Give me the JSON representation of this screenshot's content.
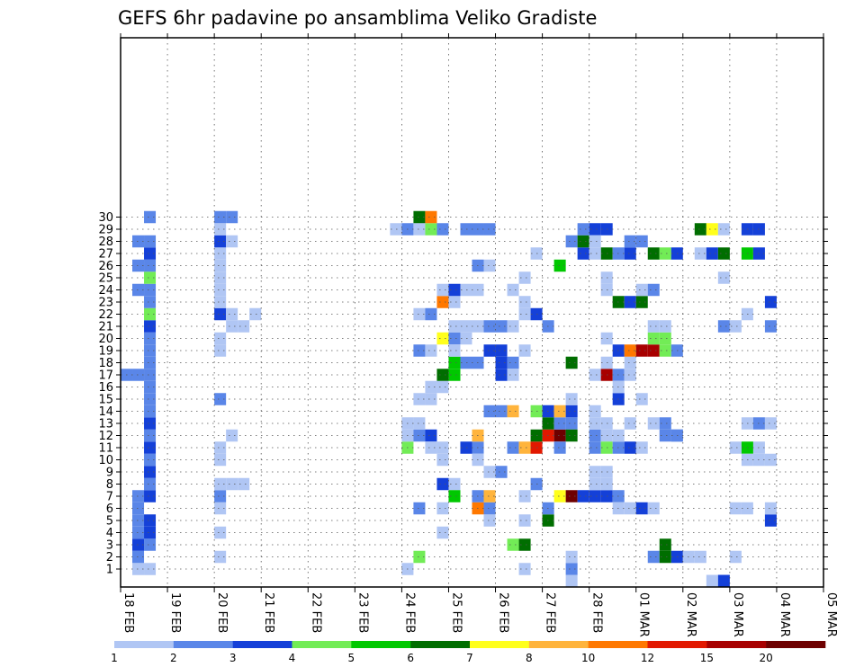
{
  "chart_data": {
    "type": "heatmap",
    "title": "GEFS 6hr padavine po ansamblima Veliko Gradiste",
    "xlabel": "",
    "ylabel": "",
    "x_tick_labels": [
      "18 FEB",
      "19 FEB",
      "20 FEB",
      "21 FEB",
      "22 FEB",
      "23 FEB",
      "24 FEB",
      "25 FEB",
      "26 FEB",
      "27 FEB",
      "28 FEB",
      "01 MAR",
      "02 MAR",
      "03 MAR",
      "04 MAR",
      "05 MAR"
    ],
    "y_tick_labels": [
      "1",
      "2",
      "3",
      "4",
      "5",
      "6",
      "7",
      "8",
      "9",
      "10",
      "11",
      "12",
      "13",
      "14",
      "15",
      "16",
      "17",
      "18",
      "19",
      "20",
      "21",
      "22",
      "23",
      "24",
      "25",
      "26",
      "27",
      "28",
      "29",
      "30"
    ],
    "grid": true,
    "x_unit": "6-hour step (0 = 18 FEB 00 UTC)",
    "colorbar": {
      "bounds": [
        "1",
        "2",
        "3",
        "4",
        "5",
        "6",
        "7",
        "8",
        "10",
        "12",
        "15",
        "20"
      ],
      "colors": [
        "#b0c6f4",
        "#5a86e8",
        "#1440d8",
        "#72ec56",
        "#00c800",
        "#006e00",
        "#ffff1c",
        "#ffb43c",
        "#ff7800",
        "#e21800",
        "#a80000",
        "#6e0000"
      ]
    },
    "cells": [
      [
        1,
        1,
        0
      ],
      [
        1,
        2,
        1
      ],
      [
        2,
        1,
        0
      ],
      [
        1,
        3,
        2
      ],
      [
        2,
        3,
        1
      ],
      [
        1,
        4,
        1
      ],
      [
        2,
        4,
        2
      ],
      [
        1,
        5,
        1
      ],
      [
        2,
        5,
        2
      ],
      [
        1,
        6,
        1
      ],
      [
        1,
        7,
        1
      ],
      [
        2,
        7,
        2
      ],
      [
        2,
        8,
        1
      ],
      [
        2,
        9,
        2
      ],
      [
        2,
        10,
        1
      ],
      [
        2,
        11,
        2
      ],
      [
        2,
        12,
        1
      ],
      [
        2,
        13,
        2
      ],
      [
        2,
        14,
        1
      ],
      [
        2,
        15,
        1
      ],
      [
        2,
        16,
        1
      ],
      [
        0,
        17,
        1
      ],
      [
        1,
        17,
        1
      ],
      [
        2,
        17,
        1
      ],
      [
        2,
        18,
        1
      ],
      [
        2,
        19,
        1
      ],
      [
        2,
        20,
        1
      ],
      [
        2,
        21,
        2
      ],
      [
        2,
        22,
        3
      ],
      [
        2,
        23,
        1
      ],
      [
        1,
        24,
        1
      ],
      [
        2,
        24,
        1
      ],
      [
        2,
        25,
        3
      ],
      [
        1,
        26,
        1
      ],
      [
        2,
        26,
        1
      ],
      [
        2,
        27,
        2
      ],
      [
        1,
        28,
        1
      ],
      [
        2,
        28,
        1
      ],
      [
        2,
        30,
        1
      ],
      [
        8,
        2,
        0
      ],
      [
        8,
        4,
        0
      ],
      [
        8,
        6,
        0
      ],
      [
        8,
        7,
        1
      ],
      [
        9,
        8,
        0
      ],
      [
        10,
        8,
        0
      ],
      [
        8,
        8,
        0
      ],
      [
        8,
        10,
        0
      ],
      [
        8,
        11,
        0
      ],
      [
        9,
        12,
        0
      ],
      [
        8,
        15,
        1
      ],
      [
        8,
        19,
        0
      ],
      [
        8,
        20,
        0
      ],
      [
        9,
        21,
        0
      ],
      [
        10,
        21,
        0
      ],
      [
        8,
        22,
        2
      ],
      [
        9,
        22,
        0
      ],
      [
        11,
        22,
        0
      ],
      [
        8,
        23,
        0
      ],
      [
        8,
        24,
        0
      ],
      [
        8,
        25,
        0
      ],
      [
        8,
        26,
        0
      ],
      [
        8,
        27,
        0
      ],
      [
        8,
        28,
        2
      ],
      [
        9,
        28,
        0
      ],
      [
        8,
        29,
        0
      ],
      [
        8,
        30,
        1
      ],
      [
        9,
        30,
        1
      ],
      [
        24,
        1,
        0
      ],
      [
        25,
        2,
        3
      ],
      [
        24,
        11,
        3
      ],
      [
        25,
        6,
        1
      ],
      [
        24,
        12,
        0
      ],
      [
        25,
        12,
        1
      ],
      [
        26,
        12,
        2
      ],
      [
        24,
        13,
        0
      ],
      [
        25,
        13,
        0
      ],
      [
        25,
        15,
        0
      ],
      [
        26,
        15,
        0
      ],
      [
        25,
        19,
        1
      ],
      [
        26,
        19,
        0
      ],
      [
        25,
        22,
        0
      ],
      [
        26,
        22,
        1
      ],
      [
        23,
        29,
        0
      ],
      [
        24,
        29,
        1
      ],
      [
        25,
        29,
        0
      ],
      [
        26,
        29,
        3
      ],
      [
        27,
        29,
        1
      ],
      [
        25,
        30,
        5
      ],
      [
        26,
        30,
        8
      ],
      [
        27,
        4,
        0
      ],
      [
        27,
        6,
        0
      ],
      [
        27,
        8,
        2
      ],
      [
        28,
        8,
        0
      ],
      [
        27,
        10,
        0
      ],
      [
        26,
        11,
        0
      ],
      [
        27,
        11,
        0
      ],
      [
        28,
        7,
        4
      ],
      [
        26,
        16,
        0
      ],
      [
        27,
        16,
        0
      ],
      [
        27,
        17,
        5
      ],
      [
        28,
        17,
        4
      ],
      [
        28,
        18,
        4
      ],
      [
        29,
        18,
        1
      ],
      [
        30,
        18,
        1
      ],
      [
        27,
        20,
        6
      ],
      [
        28,
        20,
        1
      ],
      [
        29,
        20,
        0
      ],
      [
        27,
        23,
        8
      ],
      [
        28,
        23,
        0
      ],
      [
        27,
        24,
        0
      ],
      [
        28,
        24,
        2
      ],
      [
        29,
        24,
        0
      ],
      [
        30,
        24,
        0
      ],
      [
        28,
        21,
        0
      ],
      [
        29,
        21,
        0
      ],
      [
        30,
        21,
        0
      ],
      [
        31,
        21,
        1
      ],
      [
        32,
        21,
        1
      ],
      [
        28,
        19,
        0
      ],
      [
        29,
        29,
        1
      ],
      [
        30,
        29,
        1
      ],
      [
        31,
        29,
        1
      ],
      [
        29,
        11,
        2
      ],
      [
        30,
        11,
        1
      ],
      [
        30,
        12,
        7
      ],
      [
        31,
        9,
        0
      ],
      [
        31,
        5,
        0
      ],
      [
        32,
        9,
        1
      ],
      [
        32,
        14,
        1
      ],
      [
        33,
        14,
        7
      ],
      [
        31,
        14,
        1
      ],
      [
        30,
        6,
        8
      ],
      [
        31,
        6,
        1
      ],
      [
        30,
        7,
        1
      ],
      [
        31,
        7,
        7
      ],
      [
        30,
        10,
        0
      ],
      [
        32,
        18,
        2
      ],
      [
        31,
        19,
        2
      ],
      [
        32,
        19,
        2
      ],
      [
        33,
        18,
        1
      ],
      [
        32,
        17,
        2
      ],
      [
        33,
        17,
        0
      ],
      [
        30,
        26,
        1
      ],
      [
        31,
        26,
        0
      ],
      [
        33,
        3,
        3
      ],
      [
        34,
        3,
        5
      ],
      [
        34,
        1,
        0
      ],
      [
        33,
        11,
        1
      ],
      [
        34,
        11,
        7
      ],
      [
        35,
        11,
        9
      ],
      [
        35,
        12,
        5
      ],
      [
        36,
        12,
        9
      ],
      [
        37,
        12,
        11
      ],
      [
        36,
        13,
        5
      ],
      [
        37,
        13,
        1
      ],
      [
        38,
        13,
        1
      ],
      [
        35,
        14,
        3
      ],
      [
        36,
        14,
        2
      ],
      [
        37,
        14,
        7
      ],
      [
        36,
        5,
        5
      ],
      [
        36,
        6,
        1
      ],
      [
        34,
        5,
        0
      ],
      [
        34,
        7,
        0
      ],
      [
        35,
        8,
        1
      ],
      [
        34,
        19,
        0
      ],
      [
        33,
        21,
        0
      ],
      [
        34,
        23,
        0
      ],
      [
        33,
        24,
        0
      ],
      [
        34,
        25,
        0
      ],
      [
        34,
        22,
        0
      ],
      [
        35,
        22,
        2
      ],
      [
        36,
        21,
        1
      ],
      [
        35,
        27,
        0
      ],
      [
        37,
        11,
        1
      ],
      [
        37,
        7,
        6
      ],
      [
        38,
        7,
        11
      ],
      [
        38,
        12,
        5
      ],
      [
        38,
        14,
        2
      ],
      [
        38,
        15,
        0
      ],
      [
        38,
        18,
        5
      ],
      [
        37,
        26,
        4
      ],
      [
        38,
        1,
        1
      ],
      [
        38,
        2,
        0
      ],
      [
        39,
        27,
        2
      ],
      [
        38,
        28,
        1
      ],
      [
        39,
        28,
        5
      ],
      [
        40,
        29,
        2
      ],
      [
        41,
        29,
        2
      ],
      [
        39,
        29,
        1
      ],
      [
        40,
        28,
        0
      ],
      [
        38,
        0,
        0
      ],
      [
        40,
        12,
        1
      ],
      [
        40,
        11,
        1
      ],
      [
        40,
        14,
        0
      ],
      [
        41,
        13,
        0
      ],
      [
        41,
        12,
        0
      ],
      [
        41,
        11,
        3
      ],
      [
        42,
        11,
        1
      ],
      [
        43,
        11,
        2
      ],
      [
        39,
        7,
        2
      ],
      [
        40,
        7,
        2
      ],
      [
        41,
        7,
        2
      ],
      [
        42,
        7,
        1
      ],
      [
        40,
        8,
        0
      ],
      [
        41,
        8,
        0
      ],
      [
        40,
        9,
        0
      ],
      [
        41,
        9,
        0
      ],
      [
        40,
        13,
        0
      ],
      [
        40,
        17,
        0
      ],
      [
        41,
        17,
        10
      ],
      [
        42,
        17,
        1
      ],
      [
        41,
        18,
        0
      ],
      [
        43,
        18,
        0
      ],
      [
        42,
        19,
        2
      ],
      [
        43,
        19,
        8
      ],
      [
        44,
        19,
        10
      ],
      [
        45,
        19,
        10
      ],
      [
        46,
        19,
        3
      ],
      [
        47,
        19,
        1
      ],
      [
        41,
        20,
        0
      ],
      [
        43,
        17,
        0
      ],
      [
        41,
        24,
        0
      ],
      [
        41,
        25,
        0
      ],
      [
        42,
        23,
        5
      ],
      [
        43,
        23,
        2
      ],
      [
        44,
        23,
        5
      ],
      [
        44,
        24,
        0
      ],
      [
        41,
        27,
        5
      ],
      [
        42,
        27,
        1
      ],
      [
        43,
        27,
        2
      ],
      [
        45,
        27,
        5
      ],
      [
        46,
        27,
        3
      ],
      [
        47,
        27,
        2
      ],
      [
        40,
        27,
        0
      ],
      [
        43,
        28,
        1
      ],
      [
        44,
        28,
        1
      ],
      [
        42,
        6,
        0
      ],
      [
        43,
        6,
        0
      ],
      [
        44,
        6,
        2
      ],
      [
        45,
        6,
        0
      ],
      [
        42,
        15,
        2
      ],
      [
        44,
        15,
        0
      ],
      [
        42,
        16,
        0
      ],
      [
        43,
        13,
        0
      ],
      [
        42,
        12,
        0
      ],
      [
        44,
        11,
        0
      ],
      [
        45,
        2,
        1
      ],
      [
        46,
        2,
        5
      ],
      [
        47,
        2,
        2
      ],
      [
        48,
        2,
        0
      ],
      [
        46,
        3,
        5
      ],
      [
        49,
        2,
        0
      ],
      [
        45,
        20,
        3
      ],
      [
        46,
        20,
        3
      ],
      [
        45,
        21,
        0
      ],
      [
        46,
        21,
        0
      ],
      [
        45,
        24,
        1
      ],
      [
        45,
        13,
        0
      ],
      [
        46,
        12,
        1
      ],
      [
        47,
        12,
        1
      ],
      [
        46,
        13,
        1
      ],
      [
        47,
        12,
        1
      ]
    ],
    "cells_extra": [
      [
        49,
        29,
        5
      ],
      [
        50,
        29,
        6
      ],
      [
        51,
        29,
        0
      ],
      [
        53,
        29,
        2
      ],
      [
        54,
        29,
        2
      ],
      [
        49,
        27,
        0
      ],
      [
        50,
        27,
        2
      ],
      [
        51,
        27,
        5
      ],
      [
        53,
        27,
        4
      ],
      [
        54,
        27,
        2
      ],
      [
        51,
        21,
        1
      ],
      [
        52,
        21,
        0
      ],
      [
        53,
        22,
        0
      ],
      [
        51,
        25,
        0
      ],
      [
        55,
        23,
        2
      ],
      [
        55,
        21,
        1
      ],
      [
        53,
        13,
        0
      ],
      [
        54,
        13,
        1
      ],
      [
        55,
        13,
        0
      ],
      [
        54,
        11,
        0
      ],
      [
        52,
        11,
        0
      ],
      [
        53,
        11,
        4
      ],
      [
        53,
        10,
        0
      ],
      [
        54,
        10,
        0
      ],
      [
        55,
        10,
        0
      ],
      [
        52,
        2,
        0
      ],
      [
        50,
        0,
        0
      ],
      [
        51,
        0,
        2
      ],
      [
        55,
        5,
        2
      ],
      [
        52,
        6,
        0
      ],
      [
        53,
        6,
        0
      ],
      [
        55,
        6,
        0
      ]
    ]
  }
}
